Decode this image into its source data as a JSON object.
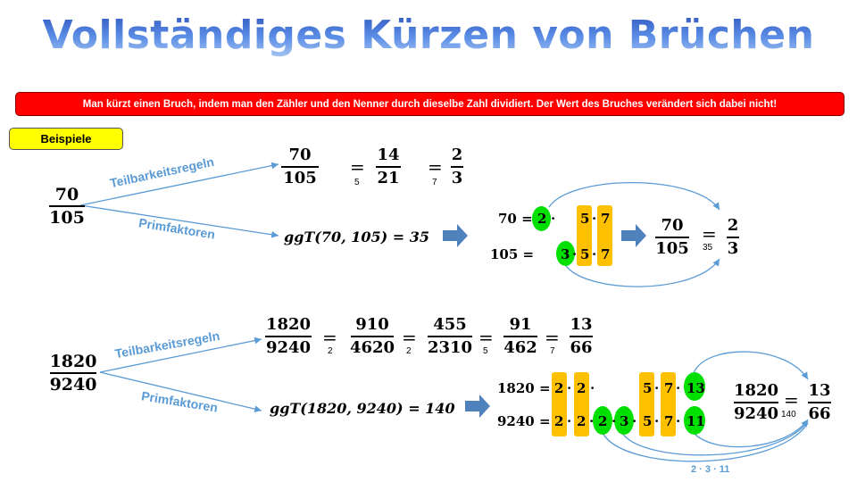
{
  "title": "Vollständiges Kürzen von Brüchen",
  "rule": "Man kürzt einen Bruch, indem man den Zähler und den Nenner durch dieselbe Zahl dividiert. Der Wert des Bruches verändert sich dabei nicht!",
  "examples_label": "Beispiele",
  "example1": {
    "start": {
      "num": "70",
      "den": "105"
    },
    "branch_top": "Teilbarkeitsregeln",
    "branch_bottom": "Primfaktoren",
    "chain": [
      {
        "num": "70",
        "den": "105"
      },
      {
        "num": "14",
        "den": "21"
      },
      {
        "num": "2",
        "den": "3"
      }
    ],
    "divisors": [
      "5",
      "7"
    ],
    "ggt": "ggT(70, 105) = 35",
    "row1_label": "70 =",
    "row2_label": "105 =",
    "row1": [
      "2",
      "·",
      "5",
      "·",
      "7"
    ],
    "row2": [
      "3",
      "·",
      "5",
      "·",
      "7"
    ],
    "dot": "·",
    "result_from": {
      "num": "70",
      "den": "105"
    },
    "result_to": {
      "num": "2",
      "den": "3"
    },
    "result_divisor": "35"
  },
  "example2": {
    "start": {
      "num": "1820",
      "den": "9240"
    },
    "branch_top": "Teilbarkeitsregeln",
    "branch_bottom": "Primfaktoren",
    "chain": [
      {
        "num": "1820",
        "den": "9240"
      },
      {
        "num": "910",
        "den": "4620"
      },
      {
        "num": "455",
        "den": "2310"
      },
      {
        "num": "91",
        "den": "462"
      },
      {
        "num": "13",
        "den": "66"
      }
    ],
    "divisors": [
      "2",
      "2",
      "5",
      "7"
    ],
    "ggt": "ggT(1820, 9240) = 140",
    "row1_label": "1820 =",
    "row2_label": "9240 =",
    "result_from": {
      "num": "1820",
      "den": "9240"
    },
    "result_to": {
      "num": "13",
      "den": "66"
    },
    "result_divisor": "140",
    "leftover": "2 · 3 · 11"
  },
  "colors": {
    "title": "#3b66c8",
    "rule_bg": "#ff0000",
    "examples_bg": "#ffff00",
    "branch": "#5b9bd5",
    "factor_box": "#ffc000",
    "factor_oval": "#00e000",
    "arrow": "#4f81bd"
  }
}
